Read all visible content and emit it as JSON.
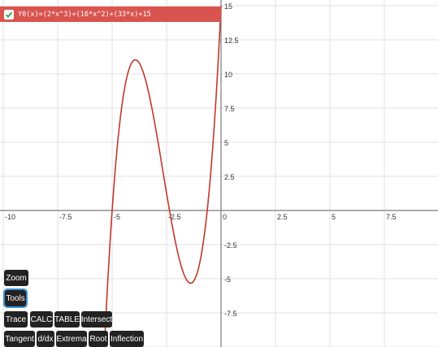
{
  "equation": {
    "label": "Y0(x)=(2*x^3)+(16*x^2)+(33*x)+15",
    "color": "#d9534f",
    "checked": true
  },
  "chart_data": {
    "type": "line",
    "x_ticks": [
      "-10",
      "-7.5",
      "-5",
      "-2.5",
      "0",
      "2.5",
      "5",
      "7.5"
    ],
    "y_ticks": [
      "15",
      "12.5",
      "10",
      "7.5",
      "5",
      "2.5",
      "-2.5",
      "-5",
      "-7.5"
    ],
    "xlim": [
      -10,
      10
    ],
    "ylim": [
      -10,
      15
    ],
    "grid": true,
    "series": [
      {
        "expression": "2*x^3 + 16*x^2 + 33*x + 15",
        "color": "#c0392b"
      }
    ]
  },
  "buttons": {
    "zoom": "Zoom",
    "tools": "Tools",
    "trace": "Trace",
    "calc": "CALC",
    "table": "TABLE",
    "intersect": "Intersect",
    "tangent": "Tangent",
    "ddx": "d/dx",
    "extrema": "Extrema",
    "root": "Root",
    "inflection": "Inflection"
  }
}
